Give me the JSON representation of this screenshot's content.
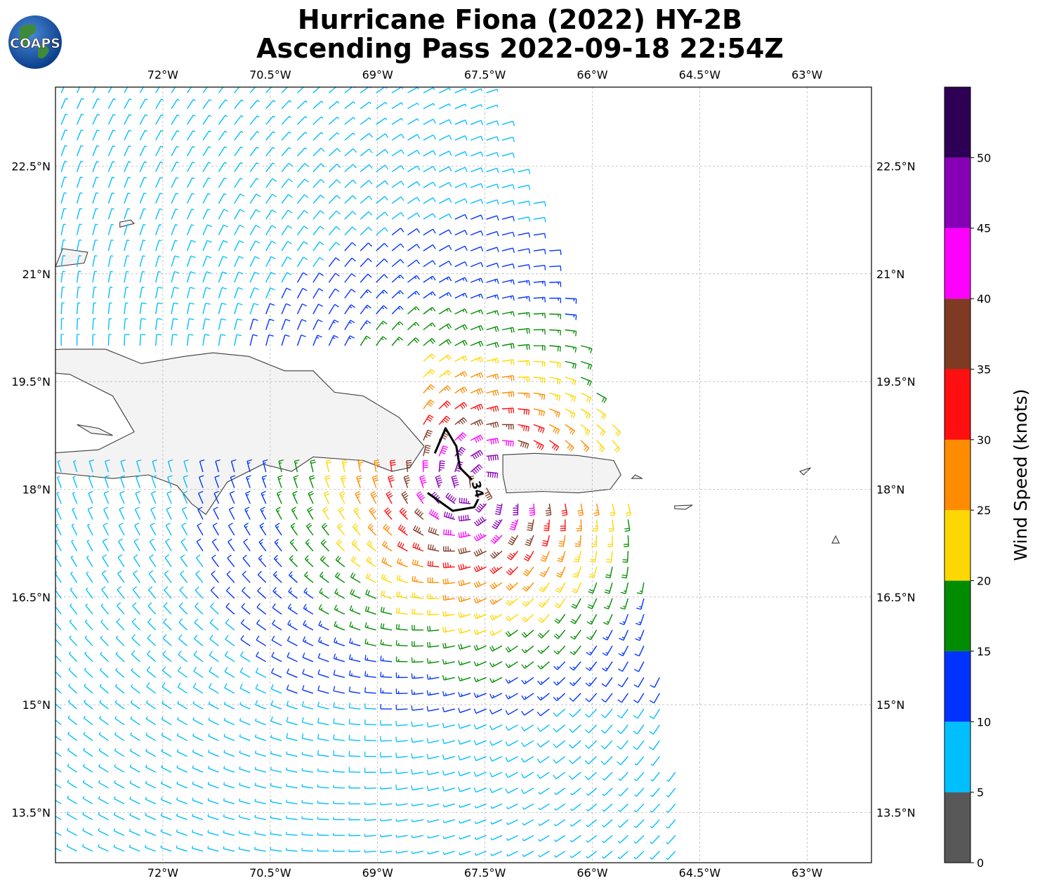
{
  "title": {
    "line1": "Hurricane Fiona (2022) HY-2B",
    "line2": "Ascending Pass 2022-09-18 22:54Z"
  },
  "logo": {
    "text": "COAPS",
    "name": "coaps-logo"
  },
  "map": {
    "projection": "PlateCarree",
    "lon_range": [
      -73.5,
      -62.1
    ],
    "lat_range": [
      12.8,
      23.6
    ],
    "grid": true,
    "lon_ticks": [
      {
        "value": -72,
        "label": "72°W"
      },
      {
        "value": -70.5,
        "label": "70.5°W"
      },
      {
        "value": -69,
        "label": "69°W"
      },
      {
        "value": -67.5,
        "label": "67.5°W"
      },
      {
        "value": -66,
        "label": "66°W"
      },
      {
        "value": -64.5,
        "label": "64.5°W"
      },
      {
        "value": -63,
        "label": "63°W"
      }
    ],
    "lat_ticks": [
      {
        "value": 22.5,
        "label": "22.5°N"
      },
      {
        "value": 21,
        "label": "21°N"
      },
      {
        "value": 19.5,
        "label": "19.5°N"
      },
      {
        "value": 18,
        "label": "18°N"
      },
      {
        "value": 16.5,
        "label": "16.5°N"
      },
      {
        "value": 15,
        "label": "15°N"
      },
      {
        "value": 13.5,
        "label": "13.5°N"
      }
    ],
    "swath": {
      "description": "HY-2B scatterometer wind barbs in knots",
      "west_edge_lon": -73.5,
      "east_edge": [
        [
          23.6,
          -67.4
        ],
        [
          18.6,
          -65.6
        ],
        [
          12.8,
          -64.6
        ]
      ],
      "storm_center": {
        "lon": -67.6,
        "lat": 18.0
      }
    },
    "contour_34kt": {
      "label": "34",
      "path": [
        [
          -68.2,
          18.5
        ],
        [
          -68.05,
          18.85
        ],
        [
          -67.9,
          18.6
        ],
        [
          -67.85,
          18.3
        ],
        [
          -67.7,
          18.15
        ],
        [
          -67.55,
          17.95
        ],
        [
          -67.65,
          17.75
        ],
        [
          -67.95,
          17.7
        ],
        [
          -68.3,
          17.95
        ]
      ]
    },
    "colors": {
      "land": "#f3f3f3",
      "coast": "#3c3c3c",
      "grid": "#b0b0b0"
    }
  },
  "colorbar": {
    "label": "Wind Speed (knots)",
    "ticks": [
      0,
      5,
      10,
      15,
      20,
      25,
      30,
      35,
      40,
      45,
      50
    ],
    "bins": [
      {
        "min": 0,
        "max": 5,
        "color": "#585858"
      },
      {
        "min": 5,
        "max": 10,
        "color": "#00bfff"
      },
      {
        "min": 10,
        "max": 15,
        "color": "#0033ff"
      },
      {
        "min": 15,
        "max": 20,
        "color": "#008c00"
      },
      {
        "min": 20,
        "max": 25,
        "color": "#ffd700"
      },
      {
        "min": 25,
        "max": 30,
        "color": "#ff8c00"
      },
      {
        "min": 30,
        "max": 35,
        "color": "#ff0f0f"
      },
      {
        "min": 35,
        "max": 40,
        "color": "#7f3a24"
      },
      {
        "min": 40,
        "max": 45,
        "color": "#ff00ff"
      },
      {
        "min": 45,
        "max": 50,
        "color": "#8800b5"
      },
      {
        "min": 50,
        "max": 55,
        "color": "#2e0055"
      }
    ]
  }
}
